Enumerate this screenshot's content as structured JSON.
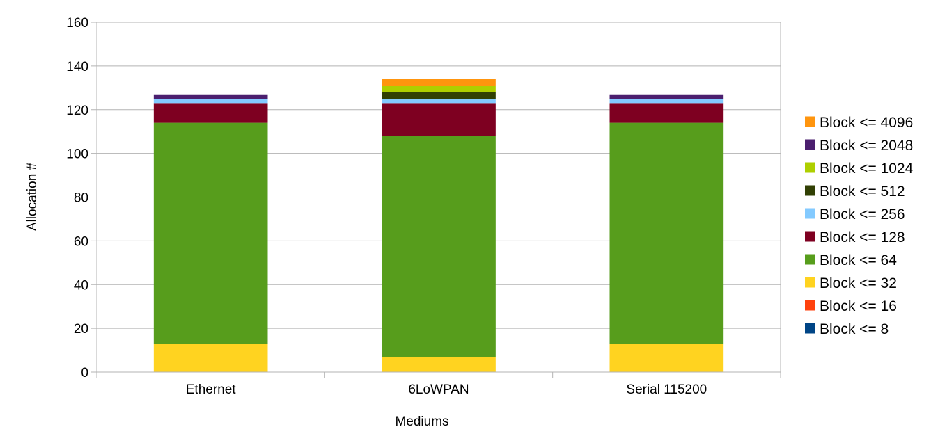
{
  "chart_data": {
    "type": "bar",
    "stacked": true,
    "title": "",
    "xlabel": "Mediums",
    "ylabel": "Allocation #",
    "ylim": [
      0,
      160
    ],
    "yticks": [
      0,
      20,
      40,
      60,
      80,
      100,
      120,
      140,
      160
    ],
    "grid": true,
    "legend_position": "right",
    "categories": [
      "Ethernet",
      "6LoWPAN",
      "Serial 115200"
    ],
    "series": [
      {
        "name": "Block <= 8",
        "color": "#004586",
        "values": [
          0,
          0,
          0
        ]
      },
      {
        "name": "Block <= 16",
        "color": "#ff420e",
        "values": [
          0,
          0,
          0
        ]
      },
      {
        "name": "Block <= 32",
        "color": "#ffd320",
        "values": [
          13,
          7,
          13
        ]
      },
      {
        "name": "Block <= 64",
        "color": "#579d1c",
        "values": [
          101,
          101,
          101
        ]
      },
      {
        "name": "Block <= 128",
        "color": "#7e0021",
        "values": [
          9,
          15,
          9
        ]
      },
      {
        "name": "Block <= 256",
        "color": "#83caff",
        "values": [
          2,
          2,
          2
        ]
      },
      {
        "name": "Block <= 512",
        "color": "#314004",
        "values": [
          0,
          3,
          0
        ]
      },
      {
        "name": "Block <= 1024",
        "color": "#aecf00",
        "values": [
          0,
          3,
          0
        ]
      },
      {
        "name": "Block <= 2048",
        "color": "#4b1f6f",
        "values": [
          2,
          0,
          2
        ]
      },
      {
        "name": "Block <= 4096",
        "color": "#ff950e",
        "values": [
          0,
          3,
          0
        ]
      }
    ]
  }
}
